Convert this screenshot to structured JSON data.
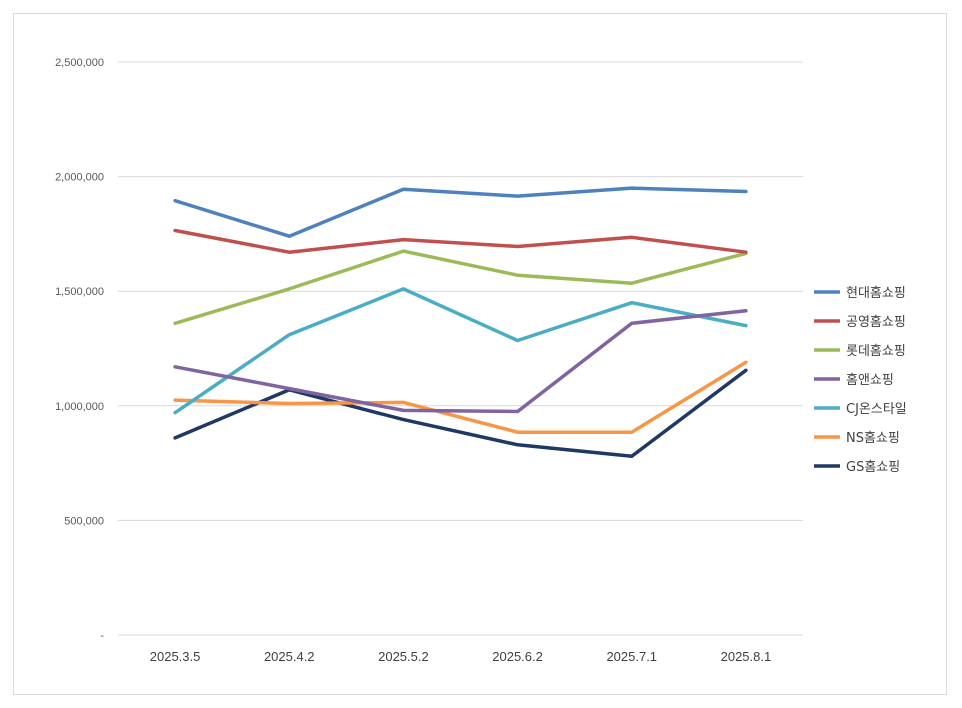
{
  "chart_data": {
    "type": "line",
    "title": "",
    "xlabel": "",
    "ylabel": "",
    "categories": [
      "2025.3.5",
      "2025.4.2",
      "2025.5.2",
      "2025.6.2",
      "2025.7.1",
      "2025.8.1"
    ],
    "ylim": [
      0,
      2500000
    ],
    "yticks": [
      0,
      500000,
      1000000,
      1500000,
      2000000,
      2500000
    ],
    "ytick_labels": [
      "-",
      "500,000",
      "1,000,000",
      "1,500,000",
      "2,000,000",
      "2,500,000"
    ],
    "grid": true,
    "legend_position": "right",
    "series": [
      {
        "name": "현대홈쇼핑",
        "color": "#4f81bd",
        "values": [
          1895000,
          1740000,
          1945000,
          1915000,
          1950000,
          1935000
        ]
      },
      {
        "name": "공영홈쇼핑",
        "color": "#c0504d",
        "values": [
          1765000,
          1670000,
          1725000,
          1695000,
          1735000,
          1670000
        ]
      },
      {
        "name": "롯데홈쇼핑",
        "color": "#9bbb59",
        "values": [
          1360000,
          1510000,
          1675000,
          1570000,
          1535000,
          1665000
        ]
      },
      {
        "name": "홈앤쇼핑",
        "color": "#8064a2",
        "values": [
          1170000,
          1075000,
          980000,
          975000,
          1360000,
          1415000
        ]
      },
      {
        "name": "CJ온스타일",
        "color": "#4bacc6",
        "values": [
          970000,
          1310000,
          1510000,
          1285000,
          1450000,
          1350000
        ]
      },
      {
        "name": "NS홈쇼핑",
        "color": "#f79646",
        "values": [
          1025000,
          1010000,
          1015000,
          885000,
          885000,
          1190000
        ]
      },
      {
        "name": "GS홈쇼핑",
        "color": "#1f3864",
        "values": [
          860000,
          1070000,
          940000,
          830000,
          780000,
          1155000
        ]
      }
    ]
  }
}
